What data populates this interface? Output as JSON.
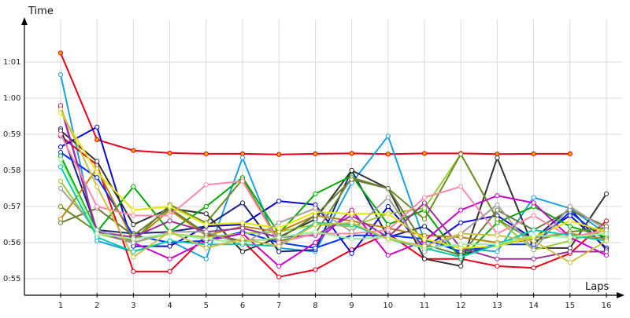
{
  "chart_data": {
    "type": "line",
    "xlabel": "Laps",
    "ylabel": "Time",
    "x": [
      1,
      2,
      3,
      4,
      5,
      6,
      7,
      8,
      9,
      10,
      11,
      12,
      13,
      14,
      15,
      16
    ],
    "x_tick_labels": [
      "1",
      "2",
      "3",
      "4",
      "5",
      "6",
      "7",
      "8",
      "9",
      "10",
      "11",
      "12",
      "13",
      "14",
      "15",
      "16"
    ],
    "y_unit": "seconds",
    "y_ticks": [
      55,
      56,
      57,
      58,
      59,
      60,
      61
    ],
    "y_tick_labels": [
      "0:55",
      "0:56",
      "0:57",
      "0:58",
      "0:59",
      "1:00",
      "1:01"
    ],
    "ylim": [
      54.3,
      62.8
    ],
    "grid": true,
    "legend": "none",
    "series": [
      {
        "color": "#e6001a",
        "marker_fill": "#ffaa00",
        "values": [
          61.25,
          58.85,
          58.55,
          58.48,
          58.46,
          58.46,
          58.44,
          58.46,
          58.47,
          58.45,
          58.47,
          58.47,
          58.45,
          58.46,
          58.46,
          null
        ]
      },
      {
        "color": "#1ba1e2",
        "values": [
          60.65,
          56.05,
          55.75,
          56.05,
          55.55,
          58.35,
          55.85,
          55.75,
          57.65,
          58.95,
          56.05,
          55.85,
          55.75,
          57.25,
          56.95,
          56.25
        ]
      },
      {
        "color": "#e6001a",
        "values": [
          58.95,
          58.15,
          55.2,
          55.2,
          56.2,
          56.05,
          55.05,
          55.25,
          55.8,
          56.25,
          55.55,
          55.55,
          55.35,
          55.3,
          55.7,
          56.6
        ]
      },
      {
        "color": "#0a0ac8",
        "values": [
          58.65,
          59.2,
          55.9,
          55.9,
          56.45,
          56.5,
          57.15,
          57.05,
          55.7,
          57.0,
          55.85,
          56.55,
          56.75,
          56.1,
          56.75,
          55.85
        ]
      },
      {
        "color": "#1a237e",
        "values": [
          59.15,
          56.35,
          56.25,
          56.3,
          56.45,
          57.1,
          55.75,
          55.8,
          58.0,
          56.15,
          56.45,
          55.65,
          55.95,
          56.1,
          56.95,
          55.8
        ]
      },
      {
        "color": "#333333",
        "values": [
          59.1,
          58.25,
          56.5,
          56.95,
          56.8,
          55.75,
          56.15,
          56.65,
          58.0,
          57.5,
          55.55,
          55.35,
          58.35,
          55.85,
          55.85,
          57.35
        ]
      },
      {
        "color": "#0033ff",
        "values": [
          58.5,
          57.8,
          56.2,
          56.0,
          56.05,
          56.3,
          56.0,
          55.85,
          56.2,
          56.2,
          56.1,
          55.75,
          55.95,
          55.95,
          56.85,
          56.05
        ]
      },
      {
        "color": "#00aa00",
        "values": [
          58.4,
          56.3,
          57.55,
          56.3,
          57.0,
          57.8,
          56.25,
          57.35,
          57.85,
          56.5,
          56.9,
          55.55,
          56.55,
          57.0,
          56.45,
          56.15
        ]
      },
      {
        "color": "#99cc33",
        "values": [
          57.7,
          56.25,
          56.0,
          56.25,
          56.15,
          56.25,
          56.3,
          56.5,
          56.45,
          56.8,
          56.95,
          58.45,
          56.65,
          55.8,
          56.05,
          56.35
        ]
      },
      {
        "color": "#6b8e23",
        "values": [
          57.0,
          56.3,
          56.05,
          57.05,
          56.55,
          57.75,
          56.05,
          56.25,
          57.8,
          57.5,
          56.65,
          58.45,
          56.65,
          56.05,
          56.3,
          56.4
        ]
      },
      {
        "color": "#b8860b",
        "values": [
          56.65,
          58.05,
          56.05,
          56.9,
          56.2,
          56.45,
          56.3,
          56.75,
          56.6,
          56.4,
          56.2,
          56.15,
          56.0,
          56.15,
          56.25,
          56.1
        ]
      },
      {
        "color": "#6b7b3a",
        "values": [
          56.55,
          56.95,
          56.2,
          56.95,
          56.25,
          56.05,
          56.1,
          56.75,
          57.75,
          57.5,
          55.95,
          55.65,
          56.9,
          56.35,
          56.9,
          56.45
        ]
      },
      {
        "color": "#cc00cc",
        "values": [
          59.75,
          56.3,
          56.0,
          55.55,
          56.05,
          56.25,
          55.35,
          56.0,
          56.9,
          55.65,
          56.05,
          56.9,
          57.3,
          57.1,
          56.15,
          55.65
        ]
      },
      {
        "color": "#993399",
        "values": [
          59.8,
          56.3,
          56.15,
          56.6,
          56.3,
          56.4,
          56.15,
          56.2,
          56.75,
          56.15,
          57.1,
          55.85,
          55.55,
          55.55,
          55.75,
          55.75
        ]
      },
      {
        "color": "#ff88aa",
        "values": [
          59.0,
          57.0,
          56.75,
          56.75,
          57.6,
          57.7,
          56.0,
          56.25,
          56.25,
          56.35,
          57.25,
          57.55,
          56.25,
          56.75,
          56.15,
          56.35
        ]
      },
      {
        "color": "#e6e600",
        "values": [
          59.6,
          57.95,
          56.9,
          57.0,
          56.5,
          56.55,
          56.4,
          56.85,
          56.8,
          56.8,
          56.1,
          55.85,
          55.9,
          56.15,
          56.6,
          56.3
        ]
      },
      {
        "color": "#a0a0a0",
        "values": [
          57.5,
          56.35,
          56.0,
          56.3,
          56.3,
          55.95,
          56.55,
          56.95,
          56.3,
          57.25,
          55.75,
          56.25,
          57.05,
          55.8,
          57.0,
          56.35
        ]
      },
      {
        "color": "#00ccaa",
        "values": [
          58.1,
          56.15,
          55.75,
          56.05,
          55.95,
          55.95,
          55.9,
          56.55,
          56.5,
          56.1,
          55.85,
          55.6,
          55.95,
          56.35,
          56.2,
          56.05
        ]
      },
      {
        "color": "#99ee99",
        "values": [
          58.3,
          56.25,
          56.1,
          56.25,
          56.1,
          56.0,
          56.15,
          56.3,
          56.1,
          56.15,
          55.85,
          55.95,
          55.95,
          56.2,
          56.15,
          56.25
        ]
      },
      {
        "color": "#ccc044",
        "values": [
          59.7,
          57.55,
          55.6,
          56.3,
          55.85,
          56.1,
          55.9,
          56.5,
          56.55,
          56.1,
          55.9,
          56.25,
          56.2,
          56.05,
          55.45,
          56.05
        ]
      }
    ]
  }
}
